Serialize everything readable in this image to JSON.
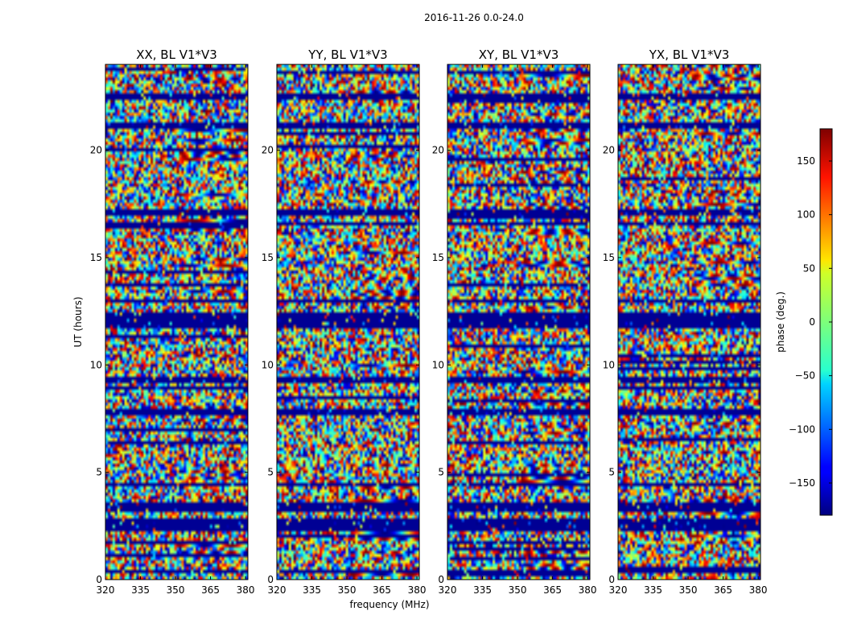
{
  "chart_data": {
    "type": "heatmap",
    "suptitle": "2016-11-26 0.0-24.0",
    "ylabel": "UT (hours)",
    "xlabel": "frequency (MHz)",
    "xlim": [
      320,
      381
    ],
    "ylim": [
      0,
      24
    ],
    "xticks": [
      "320",
      "335",
      "350",
      "365",
      "380"
    ],
    "xtick_values": [
      320,
      335,
      350,
      365,
      380
    ],
    "yticks": [
      "0",
      "5",
      "10",
      "15",
      "20"
    ],
    "ytick_values": [
      0,
      5,
      10,
      15,
      20
    ],
    "colormap": "jet",
    "panels": [
      {
        "title": "XX, BL V1*V3"
      },
      {
        "title": "YY, BL V1*V3"
      },
      {
        "title": "XY, BL V1*V3"
      },
      {
        "title": "YX, BL V1*V3"
      }
    ],
    "colorbar": {
      "label": "phase (deg.)",
      "range": [
        -180,
        180
      ],
      "ticks": [
        "150",
        "100",
        "50",
        "0",
        "−50",
        "−100",
        "−150"
      ],
      "tick_values": [
        150,
        100,
        50,
        0,
        -50,
        -100,
        -150
      ]
    },
    "flagged_bands_hours": [
      [
        0.3,
        0.45
      ],
      [
        2.3,
        2.8
      ],
      [
        3.2,
        3.6
      ],
      [
        4.3,
        4.55
      ],
      [
        7.6,
        7.9
      ],
      [
        9.2,
        9.4
      ],
      [
        11.65,
        12.4
      ],
      [
        12.9,
        13.1
      ],
      [
        16.5,
        16.7
      ],
      [
        16.9,
        17.2
      ],
      [
        21.0,
        21.25
      ],
      [
        22.3,
        22.6
      ]
    ]
  }
}
